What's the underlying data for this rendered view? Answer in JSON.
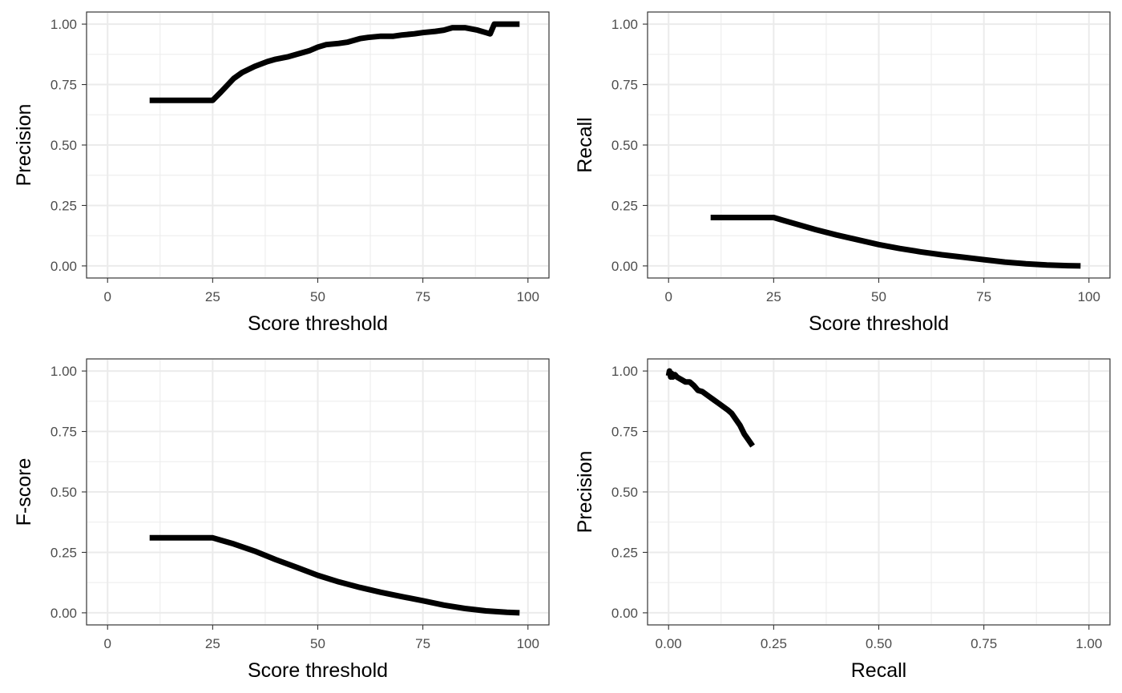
{
  "chart_data": [
    {
      "type": "line",
      "xlabel": "Score threshold",
      "ylabel": "Precision",
      "xlim": [
        -5,
        105
      ],
      "ylim": [
        -0.05,
        1.05
      ],
      "xticks": [
        0,
        25,
        50,
        75,
        100
      ],
      "xtick_labels": [
        "0",
        "25",
        "50",
        "75",
        "100"
      ],
      "yticks": [
        0,
        0.25,
        0.5,
        0.75,
        1
      ],
      "ytick_labels": [
        "0.00",
        "0.25",
        "0.50",
        "0.75",
        "1.00"
      ],
      "grid": true,
      "color": "#000000",
      "x": [
        10,
        25,
        27,
        30,
        32,
        35,
        38,
        40,
        43,
        45,
        48,
        50,
        52,
        55,
        57,
        60,
        62,
        65,
        68,
        70,
        73,
        75,
        78,
        80,
        82,
        85,
        88,
        90,
        91,
        92,
        95,
        98
      ],
      "y": [
        0.685,
        0.685,
        0.72,
        0.775,
        0.8,
        0.825,
        0.845,
        0.855,
        0.865,
        0.875,
        0.89,
        0.905,
        0.915,
        0.92,
        0.925,
        0.94,
        0.945,
        0.95,
        0.95,
        0.955,
        0.96,
        0.965,
        0.97,
        0.975,
        0.985,
        0.985,
        0.975,
        0.965,
        0.96,
        1.0,
        1.0,
        1.0
      ]
    },
    {
      "type": "line",
      "xlabel": "Score threshold",
      "ylabel": "Recall",
      "xlim": [
        -5,
        105
      ],
      "ylim": [
        -0.05,
        1.05
      ],
      "xticks": [
        0,
        25,
        50,
        75,
        100
      ],
      "xtick_labels": [
        "0",
        "25",
        "50",
        "75",
        "100"
      ],
      "yticks": [
        0,
        0.25,
        0.5,
        0.75,
        1
      ],
      "ytick_labels": [
        "0.00",
        "0.25",
        "0.50",
        "0.75",
        "1.00"
      ],
      "grid": true,
      "color": "#000000",
      "x": [
        10,
        25,
        27,
        30,
        35,
        40,
        45,
        50,
        55,
        60,
        65,
        70,
        75,
        80,
        85,
        90,
        95,
        98
      ],
      "y": [
        0.2,
        0.2,
        0.19,
        0.175,
        0.15,
        0.128,
        0.108,
        0.088,
        0.072,
        0.058,
        0.046,
        0.036,
        0.026,
        0.016,
        0.009,
        0.004,
        0.001,
        0.0
      ]
    },
    {
      "type": "line",
      "xlabel": "Score threshold",
      "ylabel": "F-score",
      "xlim": [
        -5,
        105
      ],
      "ylim": [
        -0.05,
        1.05
      ],
      "xticks": [
        0,
        25,
        50,
        75,
        100
      ],
      "xtick_labels": [
        "0",
        "25",
        "50",
        "75",
        "100"
      ],
      "yticks": [
        0,
        0.25,
        0.5,
        0.75,
        1
      ],
      "ytick_labels": [
        "0.00",
        "0.25",
        "0.50",
        "0.75",
        "1.00"
      ],
      "grid": true,
      "color": "#000000",
      "x": [
        10,
        25,
        27,
        30,
        35,
        40,
        45,
        50,
        55,
        60,
        65,
        70,
        75,
        80,
        85,
        90,
        95,
        98
      ],
      "y": [
        0.31,
        0.31,
        0.3,
        0.285,
        0.255,
        0.22,
        0.188,
        0.155,
        0.128,
        0.105,
        0.085,
        0.067,
        0.05,
        0.032,
        0.018,
        0.008,
        0.002,
        0.0
      ]
    },
    {
      "type": "line",
      "xlabel": "Recall",
      "ylabel": "Precision",
      "xlim": [
        -0.05,
        1.05
      ],
      "ylim": [
        -0.05,
        1.05
      ],
      "xticks": [
        0,
        0.25,
        0.5,
        0.75,
        1
      ],
      "xtick_labels": [
        "0.00",
        "0.25",
        "0.50",
        "0.75",
        "1.00"
      ],
      "yticks": [
        0,
        0.25,
        0.5,
        0.75,
        1
      ],
      "ytick_labels": [
        "0.00",
        "0.25",
        "0.50",
        "0.75",
        "1.00"
      ],
      "grid": true,
      "color": "#000000",
      "x": [
        0.0,
        0.002,
        0.005,
        0.007,
        0.01,
        0.015,
        0.02,
        0.03,
        0.04,
        0.05,
        0.06,
        0.07,
        0.08,
        0.1,
        0.12,
        0.14,
        0.15,
        0.16,
        0.17,
        0.18,
        0.19,
        0.2
      ],
      "y": [
        0.98,
        1.0,
        0.975,
        0.99,
        0.975,
        0.985,
        0.975,
        0.965,
        0.955,
        0.955,
        0.94,
        0.92,
        0.915,
        0.89,
        0.865,
        0.84,
        0.825,
        0.8,
        0.775,
        0.74,
        0.715,
        0.69
      ]
    }
  ]
}
